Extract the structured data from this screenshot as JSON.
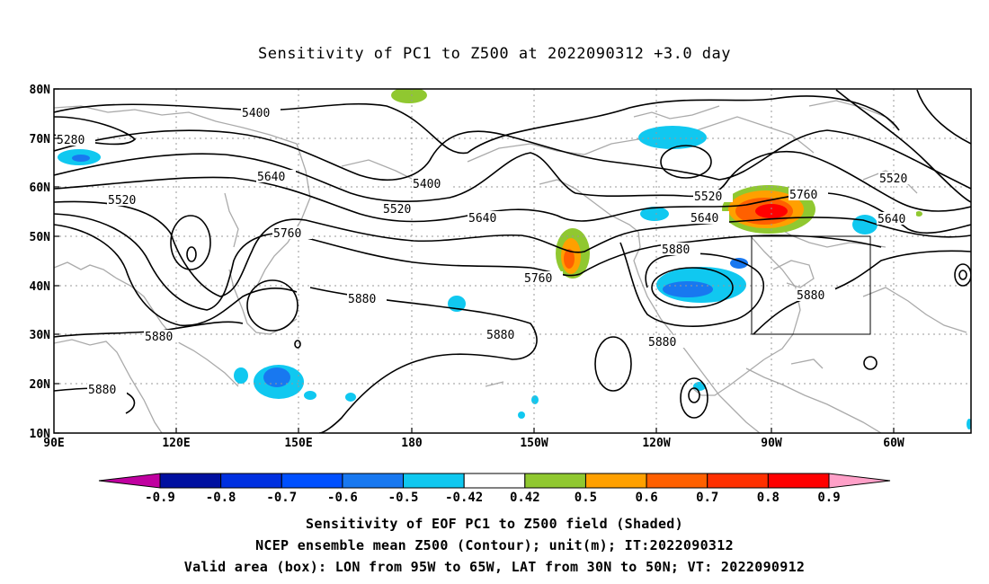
{
  "title": "Sensitivity of PC1 to Z500 at 2022090312 +3.0 day",
  "lat_ticks": [
    "80N",
    "70N",
    "60N",
    "50N",
    "40N",
    "30N",
    "20N",
    "10N"
  ],
  "lon_ticks": [
    "90E",
    "120E",
    "150E",
    "180",
    "150W",
    "120W",
    "90W",
    "60W"
  ],
  "contour_labels": [
    "5280",
    "5400",
    "5400",
    "5520",
    "5520",
    "5520",
    "5520",
    "5640",
    "5640",
    "5640",
    "5640",
    "5760",
    "5760",
    "5760",
    "5880",
    "5880",
    "5880",
    "5880",
    "5880",
    "5880"
  ],
  "colorbar": {
    "labels": [
      "-0.9",
      "-0.8",
      "-0.7",
      "-0.6",
      "-0.5",
      "-0.42",
      "0.42",
      "0.5",
      "0.6",
      "0.7",
      "0.8",
      "0.9"
    ],
    "colors": [
      "#c000a0",
      "#0010a0",
      "#0030e0",
      "#0050ff",
      "#1878f0",
      "#10c8f0",
      "#ffffff",
      "#90c830",
      "#ffa000",
      "#ff6000",
      "#ff3000",
      "#ff0000",
      "#ffa0c8"
    ]
  },
  "valid_box": {
    "lon_from": "95W",
    "lon_to": "65W",
    "lat_from": "30N",
    "lat_to": "50N"
  },
  "captions": [
    "Sensitivity of EOF PC1 to Z500 field (Shaded)",
    "NCEP ensemble mean Z500 (Contour); unit(m); IT:2022090312",
    "Valid area (box): LON from 95W to 65W, LAT from 30N to 50N; VT: 2022090912"
  ]
}
